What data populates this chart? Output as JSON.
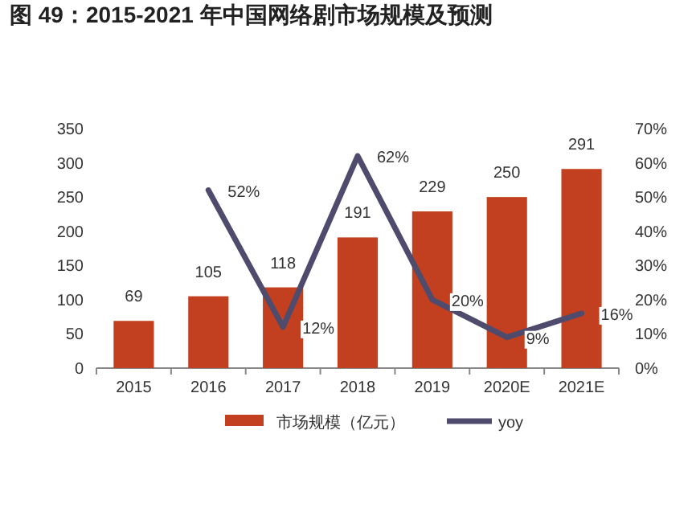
{
  "chart_data": {
    "type": "bar",
    "title": "图 49：2015-2021 年中国网络剧市场规模及预测",
    "categories": [
      "2015",
      "2016",
      "2017",
      "2018",
      "2019",
      "2020E",
      "2021E"
    ],
    "series": [
      {
        "name": "市场规模（亿元）",
        "color": "#c2401f",
        "values": [
          69,
          105,
          118,
          191,
          229,
          250,
          291
        ],
        "value_labels": [
          "69",
          "105",
          "118",
          "191",
          "229",
          "250",
          "291"
        ]
      },
      {
        "name": "yoy",
        "type": "line",
        "axis": "y2",
        "color": "#4e4b6c",
        "values": [
          null,
          52,
          12,
          62,
          20,
          9,
          16
        ],
        "value_labels": [
          null,
          "52%",
          "12%",
          "62%",
          "20%",
          "9%",
          "16%"
        ]
      }
    ],
    "ylim": [
      0,
      350
    ],
    "yticks": [
      0,
      50,
      100,
      150,
      200,
      250,
      300,
      350
    ],
    "y2lim": [
      0,
      70
    ],
    "y2ticks": [
      {
        "value": 0,
        "label": "0%"
      },
      {
        "value": 10,
        "label": "10%"
      },
      {
        "value": 20,
        "label": "20%"
      },
      {
        "value": 30,
        "label": "30%"
      },
      {
        "value": 40,
        "label": "40%"
      },
      {
        "value": 50,
        "label": "50%"
      },
      {
        "value": 60,
        "label": "60%"
      },
      {
        "value": 70,
        "label": "70%"
      }
    ],
    "grid": false,
    "legend": "bottom",
    "marker": "none",
    "line_style": "solid"
  }
}
